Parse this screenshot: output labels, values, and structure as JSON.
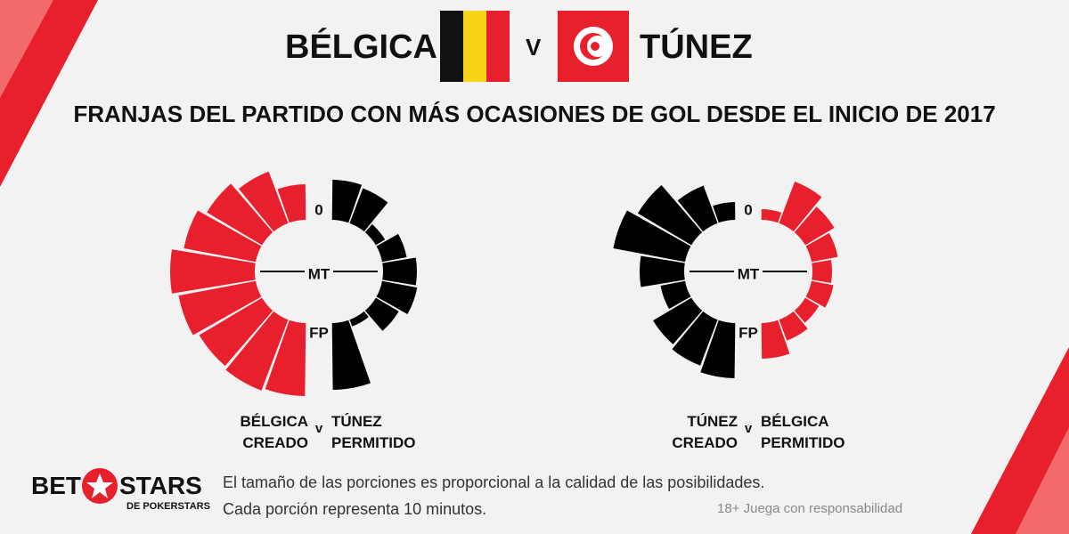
{
  "header": {
    "team1": "BÉLGICA",
    "vs": "V",
    "team2": "TÚNEZ",
    "subtitle": "FRANJAS DEL PARTIDO CON MÁS OCASIONES DE GOL DESDE EL INICIO DE 2017"
  },
  "chart_data": [
    {
      "type": "radial",
      "axis_labels": [
        "0",
        "MT",
        "FP"
      ],
      "separator": "v",
      "series": [
        {
          "name": "BÉLGICA CREADO",
          "color": "#e8202e",
          "side": "left",
          "values": [
            40,
            62,
            72,
            82,
            95,
            88,
            82,
            85,
            82
          ]
        },
        {
          "name": "TÚNEZ PERMITIDO",
          "color": "#000000",
          "side": "right",
          "values": [
            45,
            42,
            12,
            28,
            38,
            40,
            30,
            8,
            75
          ]
        }
      ]
    },
    {
      "type": "radial",
      "axis_labels": [
        "0",
        "MT",
        "FP"
      ],
      "separator": "v",
      "series": [
        {
          "name": "TÚNEZ CREADO",
          "color": "#000000",
          "side": "left",
          "values": [
            20,
            45,
            70,
            82,
            50,
            28,
            50,
            55,
            62
          ]
        },
        {
          "name": "BÉLGICA PERMITIDO",
          "color": "#e8202e",
          "side": "right",
          "values": [
            12,
            50,
            38,
            30,
            22,
            25,
            18,
            25,
            40
          ]
        }
      ]
    }
  ],
  "footer": {
    "brand1": "BET",
    "brand2": "STARS",
    "brand_sub": "DE POKERSTARS",
    "note1": "El tamaño de las porciones es proporcional a la calidad de las posibilidades.",
    "note2": "Cada porción representa 10 minutos.",
    "disclaimer": "18+ Juega con responsabilidad"
  }
}
